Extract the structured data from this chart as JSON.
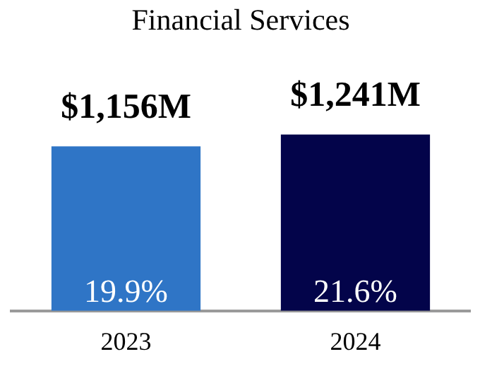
{
  "chart_data": {
    "type": "bar",
    "title": "Financial Services",
    "categories": [
      "2023",
      "2024"
    ],
    "values": [
      1156,
      1241
    ],
    "colors": [
      "#2f75c6",
      "#03044a"
    ],
    "value_labels": [
      "$1,156M",
      "$1,241M"
    ],
    "annotations": [
      "19.9%",
      "21.6%"
    ],
    "grid": false,
    "legend": false
  }
}
